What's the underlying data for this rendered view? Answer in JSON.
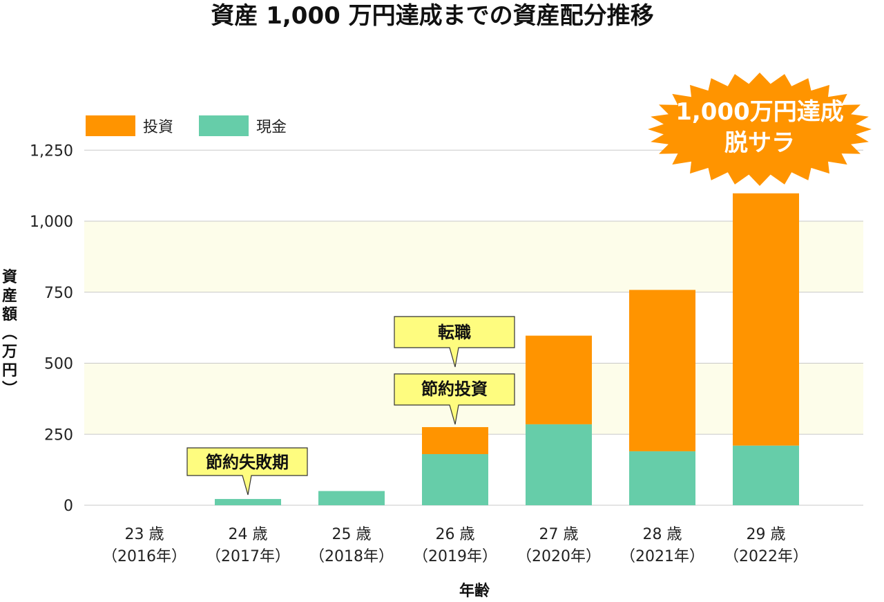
{
  "chart_data": {
    "type": "bar",
    "stacked": true,
    "title": "資産 1,000 万円達成までの資産配分推移",
    "xlabel": "年齢",
    "ylabel": "資産額（万円）",
    "ylim": [
      0,
      1250
    ],
    "yticks": [
      0,
      250,
      500,
      750,
      "1,000",
      "1,250"
    ],
    "categories": [
      {
        "age": "23 歳",
        "year": "（2016年）"
      },
      {
        "age": "24 歳",
        "year": "（2017年）"
      },
      {
        "age": "25 歳",
        "year": "（2018年）"
      },
      {
        "age": "26 歳",
        "year": "（2019年）"
      },
      {
        "age": "27 歳",
        "year": "（2020年）"
      },
      {
        "age": "28 歳",
        "year": "（2021年）"
      },
      {
        "age": "29 歳",
        "year": "（2022年）"
      }
    ],
    "series": [
      {
        "name": "現金",
        "color": "#66cda9",
        "values": [
          0,
          22,
          50,
          180,
          285,
          190,
          210
        ]
      },
      {
        "name": "投資",
        "color": "#ff9400",
        "values": [
          0,
          0,
          0,
          95,
          312,
          568,
          888
        ]
      }
    ],
    "legend": {
      "position": "top-left",
      "order": [
        "投資",
        "現金"
      ]
    },
    "annotations": [
      {
        "text": "節約失敗期",
        "category_index": 1
      },
      {
        "text": "節約投資",
        "category_index": 3
      },
      {
        "text": "転職",
        "category_index": 3
      }
    ],
    "starburst": {
      "line1": "1,000万円達成",
      "line2": "脱サラ",
      "color": "#ff9400"
    },
    "band_color": "#fdfdea",
    "grid": true
  }
}
